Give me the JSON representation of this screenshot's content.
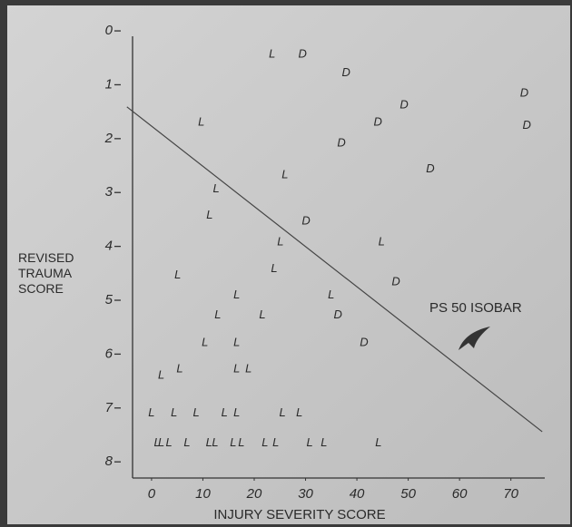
{
  "chart_data": {
    "type": "scatter",
    "xlabel": "INJURY SEVERITY SCORE",
    "ylabel": "REVISED TRAUMA SCORE",
    "annotation": "PS 50 ISOBAR",
    "xlim": [
      -3.7,
      76.6
    ],
    "xticks": [
      0,
      10,
      20,
      30,
      40,
      50,
      60,
      70
    ],
    "ylim": [
      8.3,
      0.1
    ],
    "yticks": [
      0,
      1,
      2,
      3,
      4,
      5,
      6,
      7,
      8
    ],
    "y_inverted": true,
    "isobar": {
      "x": [
        -4.8,
        76.1
      ],
      "y": [
        1.41,
        7.44
      ]
    },
    "series": [
      {
        "name": "L",
        "color": "#2a2a2a",
        "x": [
          23.5,
          9.7,
          26.0,
          12.6,
          11.3,
          25.1,
          44.8,
          23.9,
          5.1,
          35.0,
          16.6,
          12.9,
          21.6,
          10.4,
          16.6,
          1.9,
          5.5,
          16.6,
          18.9,
          0,
          4.4,
          8.7,
          14.2,
          16.6,
          25.5,
          28.8,
          1.1,
          1.9,
          3.4,
          6.9,
          11.2,
          12.4,
          15.9,
          17.5,
          22.1,
          24.2,
          30.8,
          33.6,
          44.2
        ],
        "y": [
          0.44,
          1.7,
          2.68,
          2.94,
          3.43,
          3.92,
          3.92,
          4.42,
          4.54,
          4.91,
          4.91,
          5.28,
          5.28,
          5.79,
          5.79,
          6.4,
          6.28,
          6.28,
          6.28,
          7.1,
          7.1,
          7.1,
          7.1,
          7.1,
          7.1,
          7.1,
          7.65,
          7.65,
          7.65,
          7.65,
          7.65,
          7.65,
          7.65,
          7.65,
          7.65,
          7.65,
          7.65,
          7.65,
          7.65
        ]
      },
      {
        "name": "D",
        "color": "#2a2a2a",
        "x": [
          29.4,
          37.9,
          72.6,
          49.2,
          44.1,
          73.1,
          37.0,
          54.3,
          30.1,
          47.6,
          36.3,
          41.4
        ],
        "y": [
          0.44,
          0.78,
          1.16,
          1.38,
          1.7,
          1.76,
          2.09,
          2.57,
          3.54,
          4.66,
          5.28,
          5.79
        ]
      }
    ]
  }
}
